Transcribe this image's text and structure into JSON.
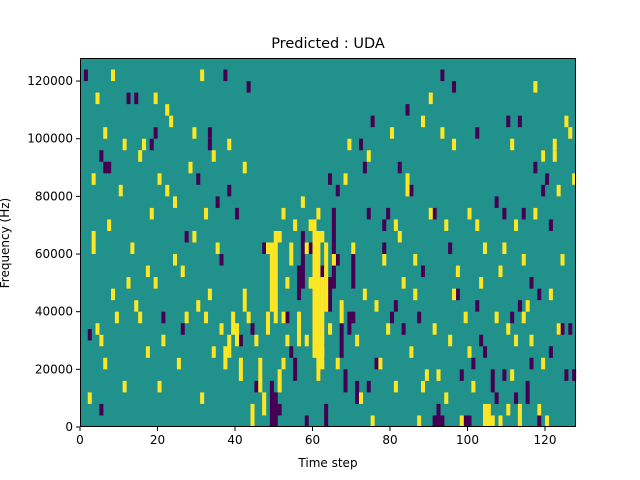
{
  "chart_data": {
    "type": "heatmap",
    "title": "Predicted : UDA",
    "xlabel": "Time step",
    "ylabel": "Frequency (Hz)",
    "xlim": [
      0,
      128
    ],
    "ylim": [
      0,
      128000
    ],
    "x_ticks": [
      0,
      20,
      40,
      60,
      80,
      100,
      120
    ],
    "y_ticks": [
      0,
      20000,
      40000,
      60000,
      80000,
      100000,
      120000
    ],
    "x_tick_labels": [
      "0",
      "20",
      "40",
      "60",
      "80",
      "100",
      "120"
    ],
    "y_tick_labels": [
      "0",
      "20000",
      "40000",
      "60000",
      "80000",
      "100000",
      "120000"
    ],
    "n_time_steps": 128,
    "n_freq_bins": 128,
    "freq_bin_width_hz": 1000,
    "colormap": "viridis",
    "color_classes": {
      "0": "#440154",
      "1": "#21918c",
      "2": "#fde725"
    },
    "background_class": 1,
    "grid": false,
    "cells_class0": [
      [
        1,
        120,
        124
      ],
      [
        2,
        30,
        34
      ],
      [
        27,
        64,
        68
      ],
      [
        36,
        56,
        60
      ],
      [
        38,
        80,
        84
      ],
      [
        41,
        28,
        32
      ],
      [
        47,
        60,
        64
      ],
      [
        49,
        0,
        16
      ],
      [
        50,
        0,
        12
      ],
      [
        51,
        4,
        8
      ],
      [
        53,
        36,
        40
      ],
      [
        54,
        24,
        28
      ],
      [
        55,
        16,
        24
      ],
      [
        56,
        44,
        56
      ],
      [
        57,
        48,
        68
      ],
      [
        58,
        0,
        4
      ],
      [
        59,
        60,
        64
      ],
      [
        62,
        48,
        56
      ],
      [
        63,
        0,
        8
      ],
      [
        64,
        40,
        52
      ],
      [
        65,
        48,
        76
      ],
      [
        66,
        56,
        60
      ],
      [
        67,
        24,
        36
      ],
      [
        68,
        12,
        20
      ],
      [
        69,
        32,
        40
      ],
      [
        70,
        48,
        60
      ],
      [
        71,
        8,
        16
      ],
      [
        72,
        96,
        100
      ],
      [
        73,
        88,
        92
      ],
      [
        74,
        12,
        16
      ],
      [
        76,
        20,
        24
      ],
      [
        78,
        60,
        64
      ],
      [
        80,
        36,
        40
      ],
      [
        81,
        40,
        44
      ],
      [
        82,
        88,
        92
      ],
      [
        83,
        32,
        36
      ],
      [
        87,
        36,
        40
      ],
      [
        91,
        0,
        4
      ],
      [
        92,
        0,
        8
      ],
      [
        93,
        0,
        4
      ],
      [
        95,
        60,
        64
      ],
      [
        97,
        44,
        48
      ],
      [
        98,
        16,
        20
      ],
      [
        99,
        0,
        4
      ],
      [
        100,
        0,
        4
      ],
      [
        101,
        20,
        24
      ],
      [
        102,
        100,
        104
      ],
      [
        103,
        28,
        32
      ],
      [
        104,
        24,
        28
      ],
      [
        105,
        4,
        8
      ],
      [
        106,
        12,
        20
      ],
      [
        107,
        8,
        12
      ],
      [
        108,
        0,
        4
      ],
      [
        109,
        16,
        20
      ],
      [
        110,
        104,
        108
      ],
      [
        111,
        36,
        40
      ],
      [
        112,
        8,
        12
      ],
      [
        113,
        40,
        44
      ],
      [
        114,
        72,
        76
      ],
      [
        115,
        8,
        16
      ],
      [
        116,
        20,
        24
      ],
      [
        117,
        88,
        92
      ],
      [
        118,
        0,
        8
      ],
      [
        119,
        92,
        96
      ],
      [
        120,
        84,
        88
      ],
      [
        121,
        24,
        28
      ],
      [
        123,
        32,
        36
      ],
      [
        124,
        32,
        36
      ],
      [
        125,
        16,
        20
      ],
      [
        126,
        32,
        36
      ],
      [
        127,
        16,
        20
      ],
      [
        5,
        92,
        96
      ],
      [
        6,
        88,
        92
      ],
      [
        12,
        112,
        116
      ],
      [
        18,
        96,
        100
      ],
      [
        21,
        36,
        40
      ],
      [
        26,
        32,
        36
      ],
      [
        30,
        84,
        88
      ],
      [
        33,
        96,
        100
      ],
      [
        35,
        76,
        80
      ],
      [
        40,
        72,
        76
      ],
      [
        44,
        32,
        36
      ],
      [
        45,
        12,
        16
      ],
      [
        60,
        28,
        32
      ],
      [
        61,
        32,
        36
      ],
      [
        66,
        80,
        84
      ],
      [
        74,
        72,
        76
      ],
      [
        78,
        68,
        72
      ],
      [
        85,
        80,
        84
      ],
      [
        88,
        52,
        56
      ],
      [
        93,
        120,
        124
      ],
      [
        96,
        116,
        120
      ],
      [
        109,
        72,
        76
      ],
      [
        118,
        44,
        48
      ],
      [
        121,
        68,
        72
      ],
      [
        5,
        4,
        8
      ],
      [
        7,
        88,
        92
      ],
      [
        14,
        112,
        116
      ],
      [
        19,
        100,
        104
      ],
      [
        33,
        100,
        104
      ],
      [
        37,
        120,
        124
      ],
      [
        43,
        116,
        120
      ],
      [
        61,
        16,
        20
      ],
      [
        64,
        84,
        88
      ],
      [
        70,
        36,
        40
      ],
      [
        75,
        104,
        108
      ],
      [
        79,
        72,
        76
      ],
      [
        84,
        108,
        112
      ],
      [
        91,
        72,
        76
      ],
      [
        102,
        40,
        44
      ],
      [
        107,
        76,
        80
      ],
      [
        113,
        104,
        108
      ],
      [
        116,
        48,
        52
      ],
      [
        119,
        80,
        84
      ]
    ],
    "cells_class2": [
      [
        2,
        8,
        12
      ],
      [
        3,
        60,
        64
      ],
      [
        4,
        32,
        36
      ],
      [
        5,
        28,
        32
      ],
      [
        6,
        100,
        104
      ],
      [
        7,
        68,
        72
      ],
      [
        8,
        44,
        48
      ],
      [
        9,
        36,
        40
      ],
      [
        10,
        80,
        84
      ],
      [
        11,
        12,
        16
      ],
      [
        13,
        60,
        64
      ],
      [
        14,
        40,
        44
      ],
      [
        15,
        92,
        96
      ],
      [
        16,
        96,
        100
      ],
      [
        17,
        24,
        28
      ],
      [
        18,
        72,
        76
      ],
      [
        19,
        48,
        52
      ],
      [
        20,
        12,
        16
      ],
      [
        21,
        28,
        32
      ],
      [
        22,
        80,
        84
      ],
      [
        23,
        104,
        108
      ],
      [
        24,
        56,
        60
      ],
      [
        25,
        20,
        24
      ],
      [
        26,
        52,
        56
      ],
      [
        27,
        36,
        40
      ],
      [
        28,
        88,
        92
      ],
      [
        29,
        100,
        104
      ],
      [
        30,
        40,
        44
      ],
      [
        31,
        8,
        12
      ],
      [
        32,
        36,
        40
      ],
      [
        33,
        44,
        48
      ],
      [
        34,
        24,
        28
      ],
      [
        35,
        60,
        64
      ],
      [
        36,
        32,
        36
      ],
      [
        37,
        20,
        28
      ],
      [
        38,
        24,
        32
      ],
      [
        39,
        32,
        40
      ],
      [
        40,
        28,
        36
      ],
      [
        41,
        16,
        24
      ],
      [
        42,
        40,
        48
      ],
      [
        43,
        36,
        40
      ],
      [
        44,
        0,
        8
      ],
      [
        45,
        28,
        32
      ],
      [
        46,
        12,
        24
      ],
      [
        47,
        4,
        12
      ],
      [
        48,
        32,
        40
      ],
      [
        49,
        40,
        64
      ],
      [
        50,
        36,
        68
      ],
      [
        51,
        12,
        20
      ],
      [
        52,
        20,
        24
      ],
      [
        53,
        48,
        52
      ],
      [
        54,
        60,
        64
      ],
      [
        55,
        68,
        72
      ],
      [
        56,
        28,
        40
      ],
      [
        57,
        76,
        80
      ],
      [
        58,
        60,
        64
      ],
      [
        59,
        48,
        52
      ],
      [
        60,
        24,
        72
      ],
      [
        61,
        16,
        68
      ],
      [
        62,
        20,
        52
      ],
      [
        63,
        40,
        64
      ],
      [
        64,
        32,
        36
      ],
      [
        65,
        56,
        60
      ],
      [
        66,
        20,
        24
      ],
      [
        67,
        36,
        44
      ],
      [
        68,
        84,
        88
      ],
      [
        69,
        96,
        100
      ],
      [
        70,
        60,
        64
      ],
      [
        71,
        28,
        32
      ],
      [
        72,
        8,
        12
      ],
      [
        73,
        44,
        48
      ],
      [
        74,
        92,
        96
      ],
      [
        75,
        0,
        4
      ],
      [
        76,
        40,
        44
      ],
      [
        77,
        20,
        24
      ],
      [
        78,
        56,
        60
      ],
      [
        79,
        32,
        36
      ],
      [
        80,
        100,
        104
      ],
      [
        81,
        12,
        16
      ],
      [
        82,
        64,
        68
      ],
      [
        83,
        48,
        52
      ],
      [
        84,
        80,
        88
      ],
      [
        85,
        24,
        28
      ],
      [
        86,
        56,
        60
      ],
      [
        87,
        0,
        4
      ],
      [
        88,
        104,
        108
      ],
      [
        89,
        16,
        20
      ],
      [
        90,
        72,
        76
      ],
      [
        91,
        32,
        36
      ],
      [
        92,
        16,
        20
      ],
      [
        93,
        100,
        104
      ],
      [
        94,
        8,
        12
      ],
      [
        95,
        28,
        32
      ],
      [
        96,
        44,
        48
      ],
      [
        97,
        52,
        56
      ],
      [
        98,
        0,
        4
      ],
      [
        99,
        36,
        40
      ],
      [
        100,
        24,
        28
      ],
      [
        101,
        12,
        16
      ],
      [
        102,
        68,
        72
      ],
      [
        103,
        48,
        52
      ],
      [
        104,
        0,
        8
      ],
      [
        105,
        0,
        8
      ],
      [
        106,
        0,
        4
      ],
      [
        107,
        36,
        40
      ],
      [
        108,
        0,
        4
      ],
      [
        109,
        60,
        64
      ],
      [
        110,
        4,
        8
      ],
      [
        111,
        16,
        20
      ],
      [
        112,
        28,
        32
      ],
      [
        113,
        0,
        8
      ],
      [
        114,
        56,
        60
      ],
      [
        115,
        40,
        44
      ],
      [
        116,
        28,
        32
      ],
      [
        117,
        72,
        76
      ],
      [
        118,
        4,
        8
      ],
      [
        119,
        20,
        24
      ],
      [
        120,
        0,
        4
      ],
      [
        121,
        44,
        48
      ],
      [
        122,
        92,
        96
      ],
      [
        123,
        80,
        84
      ],
      [
        124,
        56,
        60
      ],
      [
        125,
        104,
        108
      ],
      [
        126,
        100,
        104
      ],
      [
        127,
        84,
        88
      ],
      [
        3,
        64,
        68
      ],
      [
        4,
        112,
        116
      ],
      [
        8,
        120,
        124
      ],
      [
        12,
        48,
        52
      ],
      [
        15,
        36,
        40
      ],
      [
        20,
        84,
        88
      ],
      [
        22,
        108,
        112
      ],
      [
        29,
        64,
        68
      ],
      [
        31,
        120,
        124
      ],
      [
        42,
        88,
        92
      ],
      [
        48,
        60,
        64
      ],
      [
        51,
        64,
        68
      ],
      [
        52,
        72,
        76
      ],
      [
        53,
        28,
        32
      ],
      [
        61,
        72,
        76
      ],
      [
        62,
        64,
        68
      ],
      [
        86,
        44,
        48
      ],
      [
        94,
        68,
        72
      ],
      [
        96,
        96,
        100
      ],
      [
        110,
        32,
        36
      ],
      [
        111,
        96,
        100
      ],
      [
        114,
        36,
        40
      ],
      [
        119,
        92,
        96
      ],
      [
        122,
        96,
        100
      ],
      [
        123,
        32,
        36
      ],
      [
        3,
        84,
        88
      ],
      [
        6,
        20,
        24
      ],
      [
        11,
        96,
        100
      ],
      [
        17,
        52,
        56
      ],
      [
        19,
        112,
        116
      ],
      [
        24,
        76,
        80
      ],
      [
        32,
        72,
        76
      ],
      [
        34,
        92,
        96
      ],
      [
        38,
        96,
        100
      ],
      [
        52,
        36,
        40
      ],
      [
        54,
        56,
        60
      ],
      [
        58,
        28,
        32
      ],
      [
        59,
        68,
        72
      ],
      [
        62,
        24,
        28
      ],
      [
        81,
        68,
        72
      ],
      [
        88,
        12,
        16
      ],
      [
        90,
        112,
        116
      ],
      [
        100,
        72,
        76
      ],
      [
        104,
        60,
        64
      ],
      [
        108,
        52,
        56
      ],
      [
        112,
        68,
        72
      ],
      [
        117,
        116,
        120
      ]
    ]
  }
}
